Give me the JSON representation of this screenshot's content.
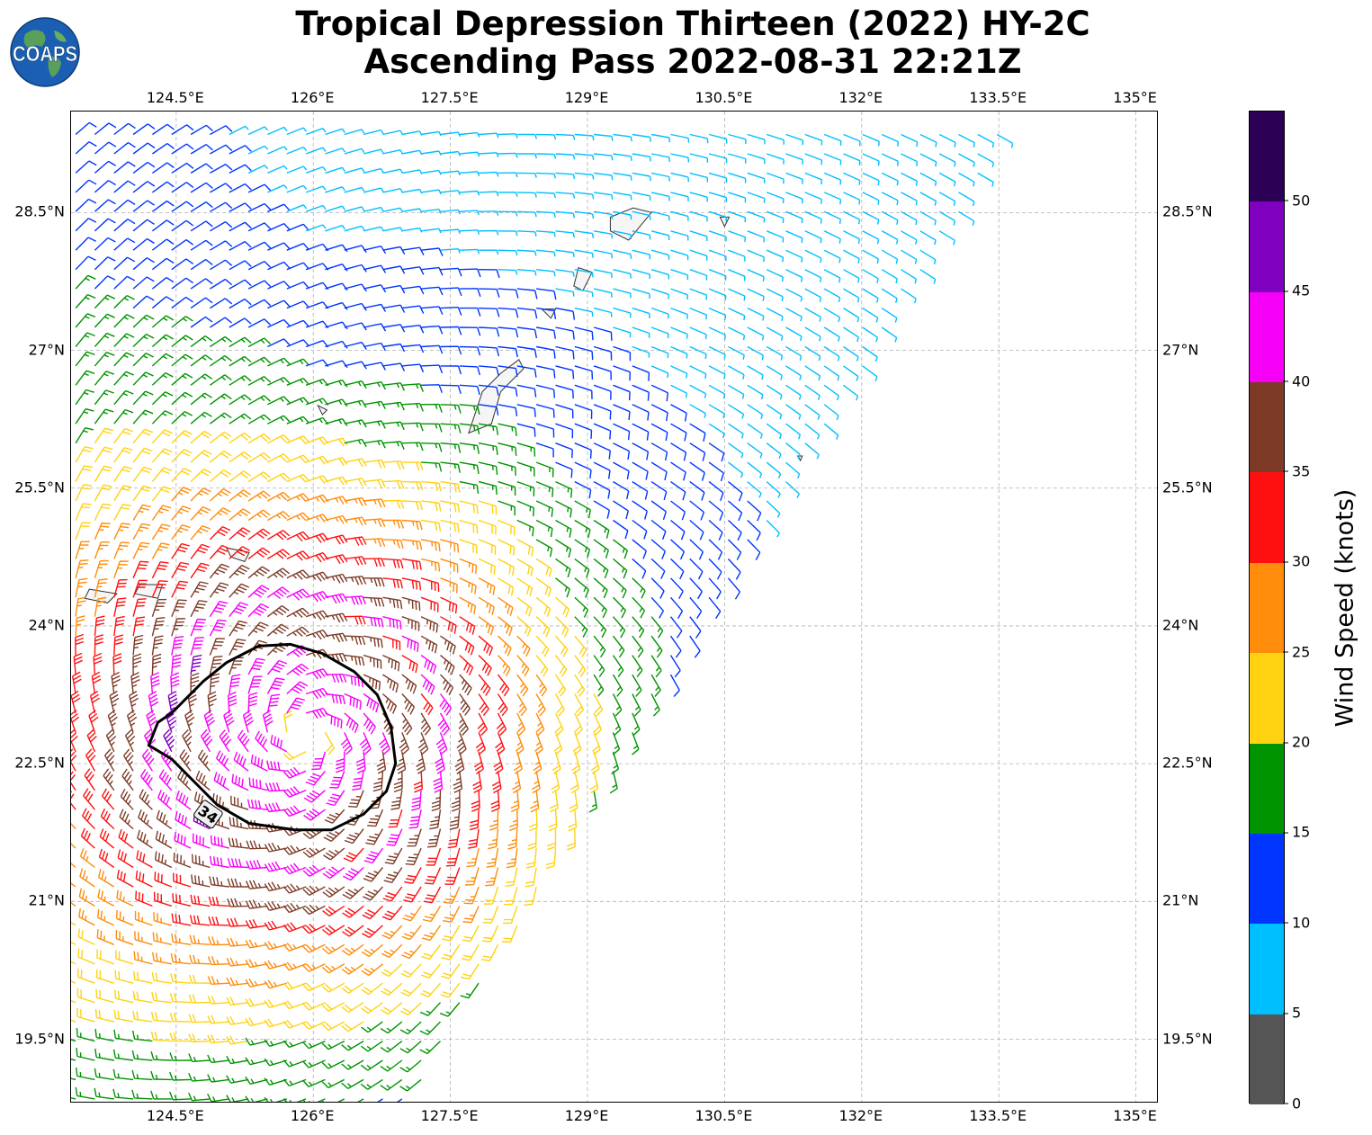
{
  "title": {
    "line1": "Tropical Depression Thirteen (2022) HY-2C",
    "line2": "Ascending Pass 2022-08-31 22:21Z"
  },
  "logo": {
    "text": "COAPS",
    "icon": "globe-logo-icon"
  },
  "axes": {
    "lon_ticks": [
      "124.5°E",
      "126°E",
      "127.5°E",
      "129°E",
      "130.5°E",
      "132°E",
      "133.5°E",
      "135°E"
    ],
    "lat_ticks": [
      "28.5°N",
      "27°N",
      "25.5°N",
      "24°N",
      "22.5°N",
      "21°N",
      "19.5°N"
    ],
    "lon_range": [
      123.35,
      135.25
    ],
    "lat_range": [
      18.8,
      29.6
    ],
    "grid": true
  },
  "contour": {
    "label": "34",
    "units": "knots"
  },
  "colorbar": {
    "label": "Wind Speed (knots)",
    "ticks": [
      "0",
      "5",
      "10",
      "15",
      "20",
      "25",
      "30",
      "35",
      "40",
      "45",
      "50"
    ],
    "colors": [
      "#555555",
      "#00bfff",
      "#0035ff",
      "#009400",
      "#ffd212",
      "#ff8c0b",
      "#ff1010",
      "#7d3b27",
      "#f700f7",
      "#8000c0",
      "#2c0055"
    ]
  }
}
